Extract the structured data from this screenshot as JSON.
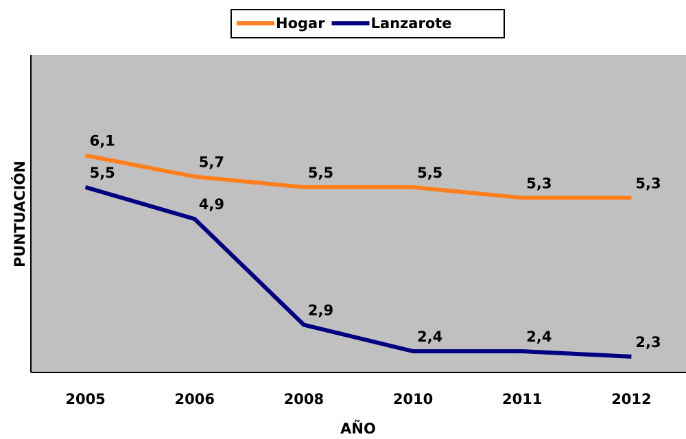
{
  "chart_data": {
    "type": "line",
    "categories": [
      "2005",
      "2006",
      "2008",
      "2010",
      "2011",
      "2012"
    ],
    "series": [
      {
        "name": "Hogar",
        "color": "#ff7f1e",
        "values": [
          6.1,
          5.7,
          5.5,
          5.5,
          5.3,
          5.3
        ],
        "value_labels": [
          "6,1",
          "5,7",
          "5,5",
          "5,5",
          "5,3",
          "5,3"
        ]
      },
      {
        "name": "Lanzarote",
        "color": "#000080",
        "values": [
          5.5,
          4.9,
          2.9,
          2.4,
          2.4,
          2.3
        ],
        "value_labels": [
          "5,5",
          "4,9",
          "2,9",
          "2,4",
          "2,4",
          "2,3"
        ]
      }
    ],
    "ylim": [
      2,
      8
    ],
    "x_label": "AÑO",
    "y_label": "PUNTUACIÓN",
    "legend": "top",
    "plot_background": "#c0c0c0"
  }
}
